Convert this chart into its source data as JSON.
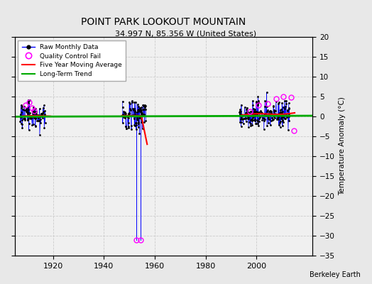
{
  "title": "POINT PARK LOOKOUT MOUNTAIN",
  "subtitle": "34.997 N, 85.356 W (United States)",
  "ylabel": "Temperature Anomaly (°C)",
  "credit": "Berkeley Earth",
  "fig_bg_color": "#e8e8e8",
  "plot_bg_color": "#f0f0f0",
  "ylim": [
    -35,
    20
  ],
  "yticks": [
    -35,
    -30,
    -25,
    -20,
    -15,
    -10,
    -5,
    0,
    5,
    10,
    15,
    20
  ],
  "xlim": [
    1905,
    2022
  ],
  "xticks": [
    1920,
    1940,
    1960,
    1980,
    2000
  ],
  "grid_color": "#cccccc",
  "trend_slope": 0.002,
  "trend_intercept": 0.05
}
